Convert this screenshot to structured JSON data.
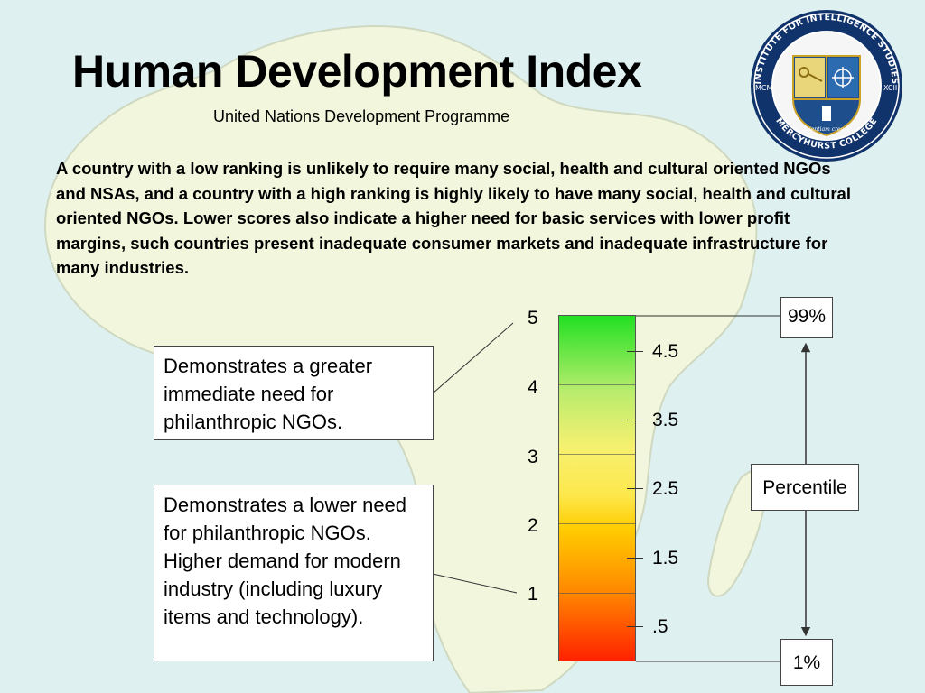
{
  "slide": {
    "title": "Human Development Index",
    "subtitle": "United Nations Development Programme",
    "description": "A country with a low ranking is unlikely to require many social, health and cultural oriented NGOs and NSAs, and a country with a high ranking is highly likely to have many social, health and cultural oriented NGOs.  Lower scores also indicate a higher need for basic services with lower profit margins, such countries present inadequate consumer markets and inadequate infrastructure for many industries."
  },
  "logo": {
    "ring_text": "INSTITUTE FOR INTELLIGENCE STUDIES",
    "bottom_text": "MERCYHURST COLLEGE",
    "left_mark": "MCM",
    "right_mark": "XCII",
    "motto": "scientiam creare",
    "icon": "institute-seal-icon"
  },
  "notes": {
    "high": "Demonstrates a greater immediate need for philanthropic NGOs.",
    "low": "Demonstrates a lower need for philanthropic NGOs.  Higher demand for modern industry (including luxury items and technology)."
  },
  "scale": {
    "major_labels": [
      "5",
      "4",
      "3",
      "2",
      "1"
    ],
    "minor_labels": [
      "4.5",
      "3.5",
      "2.5",
      "1.5",
      ".5"
    ],
    "colors": {
      "top": "#22e022",
      "middle": "#fde84c",
      "bottom": "#ff2200"
    }
  },
  "percentile": {
    "top": "99%",
    "label": "Percentile",
    "bottom": "1%"
  }
}
